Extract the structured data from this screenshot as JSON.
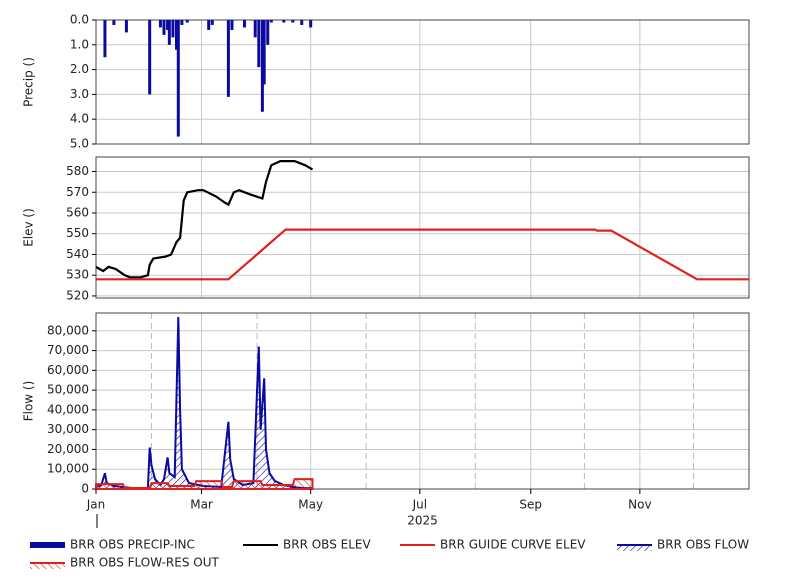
{
  "chart_data": [
    {
      "type": "bar",
      "ylabel": "Precip ()",
      "xlim": [
        0,
        365
      ],
      "ylim": [
        0,
        5
      ],
      "y_inverted": true,
      "yticks": [
        {
          "value": 0,
          "label": "0.0"
        },
        {
          "value": 1,
          "label": "1.0"
        },
        {
          "value": 2,
          "label": "2.0"
        },
        {
          "value": 3,
          "label": "3.0"
        },
        {
          "value": 4,
          "label": "4.0"
        },
        {
          "value": 5,
          "label": "5.0"
        }
      ],
      "grid": true,
      "series": [
        {
          "name": "BRR OBS PRECIP-INC",
          "color": "#0a0aa0",
          "x": [
            5,
            10,
            17,
            30,
            36,
            38,
            40,
            41,
            43,
            45,
            46,
            48,
            51,
            63,
            65,
            74,
            76,
            83,
            89,
            91,
            93,
            94,
            96,
            98,
            105,
            110,
            115,
            120
          ],
          "values": [
            1.5,
            0.2,
            0.5,
            3.0,
            0.3,
            0.6,
            0.4,
            1.0,
            0.7,
            1.2,
            4.7,
            0.2,
            0.1,
            0.4,
            0.2,
            3.1,
            0.4,
            0.3,
            0.7,
            1.9,
            3.7,
            2.6,
            1.0,
            0.1,
            0.1,
            0.1,
            0.2,
            0.3
          ]
        }
      ]
    },
    {
      "type": "line",
      "ylabel": "Elev ()",
      "xlim": [
        0,
        365
      ],
      "ylim": [
        519,
        587
      ],
      "yticks": [
        520,
        530,
        540,
        550,
        560,
        570,
        580
      ],
      "grid": true,
      "series": [
        {
          "name": "BRR OBS ELEV",
          "color": "#000000",
          "x": [
            0,
            2,
            4,
            7,
            11,
            16,
            19,
            25,
            29,
            30,
            32,
            39,
            42,
            45,
            47,
            49,
            51,
            57,
            60,
            67,
            72,
            74,
            77,
            80,
            86,
            93,
            95,
            98,
            103,
            111,
            117,
            121
          ],
          "values": [
            534,
            533,
            532,
            534,
            533,
            530,
            529,
            529,
            530,
            535,
            538,
            539,
            540,
            546,
            548,
            566,
            570,
            571,
            571,
            568,
            565,
            564,
            570,
            571,
            569,
            567,
            575,
            583,
            585,
            585,
            583,
            581
          ]
        },
        {
          "name": "BRR GUIDE CURVE ELEV",
          "color": "#e0201c",
          "x": [
            0,
            74,
            106,
            279,
            280,
            288,
            336,
            365
          ],
          "values": [
            528,
            528,
            552,
            552,
            551.5,
            551.5,
            528,
            528
          ]
        }
      ]
    },
    {
      "type": "area",
      "ylabel": "Flow ()",
      "xlabel": "2025",
      "xlim": [
        0,
        365
      ],
      "ylim": [
        0,
        89000
      ],
      "yticks": [
        0,
        {
          "value": 10000,
          "label": "10,000"
        },
        {
          "value": 20000,
          "label": "20,000"
        },
        {
          "value": 30000,
          "label": "30,000"
        },
        {
          "value": 40000,
          "label": "40,000"
        },
        {
          "value": 50000,
          "label": "50,000"
        },
        {
          "value": 60000,
          "label": "60,000"
        },
        {
          "value": 70000,
          "label": "70,000"
        },
        {
          "value": 80000,
          "label": "80,000"
        }
      ],
      "xticks": [
        {
          "value": 0,
          "label": "Jan"
        },
        {
          "value": 59,
          "label": "Mar"
        },
        {
          "value": 120,
          "label": "May"
        },
        {
          "value": 181,
          "label": "Jul"
        },
        {
          "value": 243,
          "label": "Sep"
        },
        {
          "value": 304,
          "label": "Nov"
        }
      ],
      "xminor": [
        31,
        90,
        151,
        212,
        273,
        334
      ],
      "grid": true,
      "series": [
        {
          "name": "BRR OBS FLOW",
          "color": "#0a0aa0",
          "x": [
            0,
            3,
            5,
            6,
            10,
            20,
            29,
            30,
            31,
            33,
            36,
            38,
            40,
            41,
            44,
            46,
            47,
            48,
            52,
            60,
            70,
            74,
            75,
            77,
            82,
            88,
            91,
            92,
            94,
            95,
            97,
            100,
            105,
            110,
            115,
            121
          ],
          "values": [
            1000,
            2000,
            8000,
            3000,
            1500,
            500,
            500,
            21000,
            12000,
            5000,
            2000,
            5000,
            16000,
            8000,
            6000,
            87000,
            40000,
            10000,
            3000,
            1500,
            1000,
            34000,
            15000,
            5000,
            2000,
            3000,
            72000,
            30000,
            56000,
            20000,
            8000,
            4000,
            2000,
            1000,
            500,
            300
          ]
        },
        {
          "name": "BRR OBS FLOW-RES OUT",
          "color": "#e0201c",
          "x": [
            0,
            15,
            16,
            30,
            31,
            40,
            41,
            55,
            56,
            70,
            71,
            76,
            77,
            92,
            93,
            110,
            111,
            121
          ],
          "values": [
            2500,
            2500,
            500,
            500,
            3000,
            3000,
            1500,
            1500,
            4000,
            4000,
            1000,
            1000,
            4000,
            4000,
            2000,
            2000,
            5000,
            5000
          ]
        }
      ]
    }
  ],
  "legend_position": "bottom"
}
